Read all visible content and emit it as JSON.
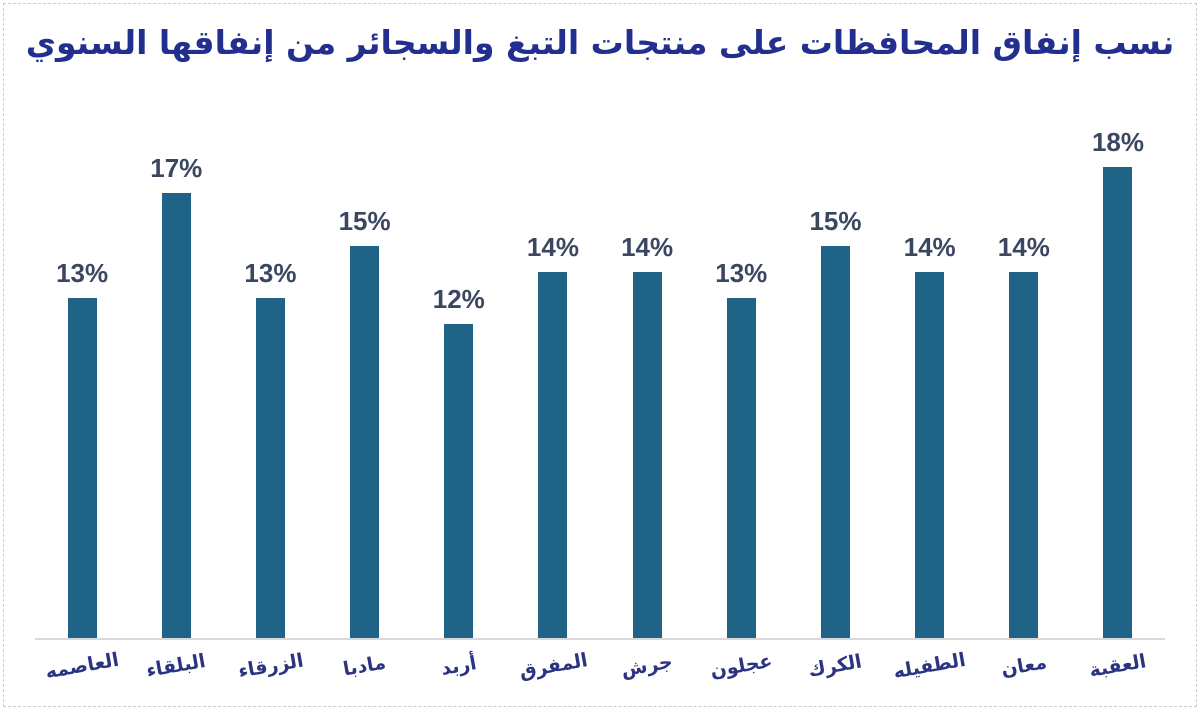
{
  "title": "نسب إنفاق المحافظات على منتجات التبغ والسجائر من إنفاقها السنوي",
  "colors": {
    "bar": "#1F6386",
    "title_text": "#232F8F",
    "value_label_text": "#3B4760",
    "axis_label_text": "#2B3480",
    "axis_line": "#D9D9D9",
    "border": "#C9CDD3",
    "background": "#FFFFFF"
  },
  "chart_data": {
    "type": "bar",
    "title": "نسب إنفاق المحافظات على منتجات التبغ والسجائر من إنفاقها السنوي",
    "xlabel": "",
    "ylabel": "",
    "grid": false,
    "legend": false,
    "data_labels_position": "above-bar",
    "categories": [
      "العاصمه",
      "البلقاء",
      "الزرقاء",
      "مادبا",
      "أربد",
      "المفرق",
      "جرش",
      "عجلون",
      "الكرك",
      "الطفيله",
      "معان",
      "العقبة"
    ],
    "values": [
      13,
      17,
      13,
      15,
      12,
      14,
      14,
      13,
      15,
      14,
      14,
      18
    ],
    "value_labels": [
      "13%",
      "17%",
      "13%",
      "15%",
      "12%",
      "14%",
      "14%",
      "13%",
      "15%",
      "14%",
      "14%",
      "18%"
    ]
  }
}
